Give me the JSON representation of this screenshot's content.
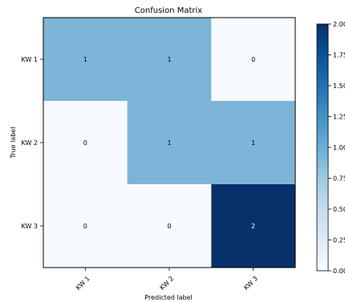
{
  "chart_data": {
    "type": "heatmap",
    "title": "Confusion Matrix",
    "xlabel": "Predicted label",
    "ylabel": "True label",
    "x_categories": [
      "KW 1",
      "KW 2",
      "KW 3"
    ],
    "y_categories": [
      "KW 1",
      "KW 2",
      "KW 3"
    ],
    "values": [
      [
        1,
        1,
        0
      ],
      [
        0,
        1,
        1
      ],
      [
        0,
        0,
        2
      ]
    ],
    "colormap": "Blues",
    "color_range": [
      0,
      2
    ],
    "colorbar_ticks": [
      "0.00",
      "0.25",
      "0.50",
      "0.75",
      "1.00",
      "1.25",
      "1.50",
      "1.75",
      "2.00"
    ],
    "colors": {
      "min": "#f7fbff",
      "mid": "#7fb4d9",
      "max": "#08306b"
    },
    "grid": false
  }
}
